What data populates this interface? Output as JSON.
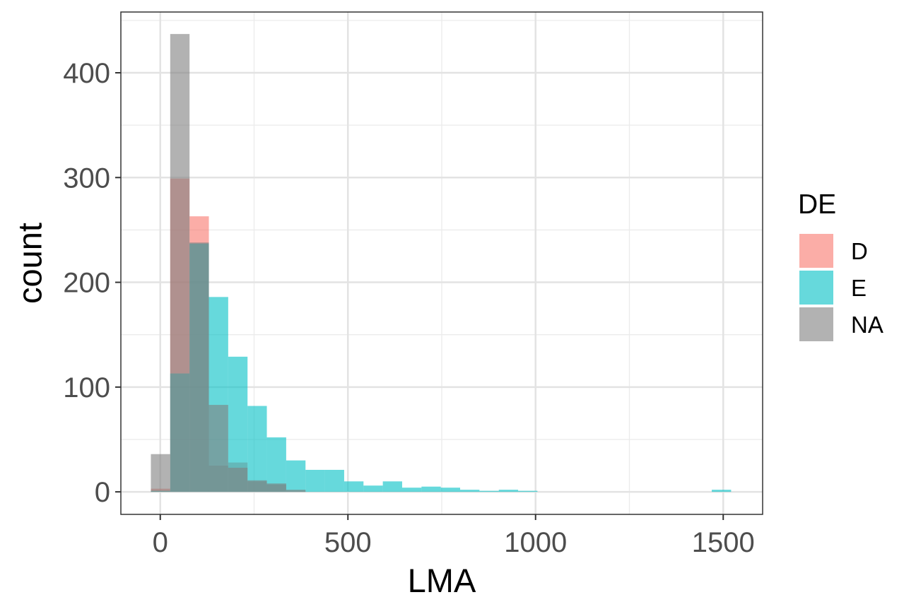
{
  "chart_data": {
    "type": "histogram",
    "xlabel": "LMA",
    "ylabel": "count",
    "xlim": [
      -105,
      1605
    ],
    "ylim": [
      -21.5,
      458
    ],
    "xticks": [
      0,
      500,
      1000,
      1500
    ],
    "yticks": [
      0,
      100,
      200,
      300,
      400
    ],
    "xtick_labels": [
      "0",
      "500",
      "1000",
      "1500"
    ],
    "ytick_labels": [
      "0",
      "100",
      "200",
      "300",
      "400"
    ],
    "minor_xgrid": [
      250,
      750,
      1250
    ],
    "minor_ygrid": [
      50,
      150,
      250,
      350,
      450
    ],
    "grid": true,
    "bin_width": 51.5,
    "legend": {
      "title": "DE",
      "position": "right",
      "entries": [
        "D",
        "E",
        "NA"
      ]
    },
    "series": [
      {
        "name": "D",
        "color": "#F8766D",
        "bin_starts": [
          -25,
          26.5,
          78,
          129.5,
          181,
          232.5,
          284,
          335.5
        ],
        "counts": [
          3,
          299,
          263,
          25,
          28,
          10,
          7,
          1
        ]
      },
      {
        "name": "E",
        "color": "#00BFC4",
        "bin_starts": [
          -25,
          26.5,
          78,
          129.5,
          181,
          232.5,
          284,
          335.5,
          387,
          438.5,
          490,
          541.5,
          593,
          644.5,
          696,
          747.5,
          799,
          850.5,
          902,
          953.5,
          1469.5
        ],
        "counts": [
          1,
          113,
          237,
          186,
          129,
          82,
          52,
          30,
          21,
          21,
          10,
          6,
          10,
          4,
          5,
          4,
          2,
          1,
          2,
          1,
          2
        ]
      },
      {
        "name": "NA",
        "color": "#7F7F7F",
        "bin_starts": [
          -25,
          26.5,
          78,
          129.5,
          181,
          232.5,
          284,
          335.5
        ],
        "counts": [
          36,
          437,
          238,
          83,
          23,
          11,
          8,
          2
        ]
      }
    ]
  }
}
